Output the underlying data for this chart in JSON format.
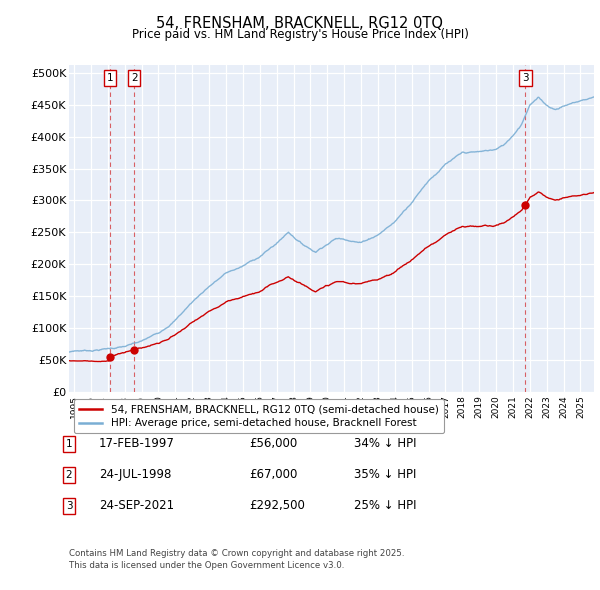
{
  "title": "54, FRENSHAM, BRACKNELL, RG12 0TQ",
  "subtitle": "Price paid vs. HM Land Registry's House Price Index (HPI)",
  "ylabel_ticks": [
    "£0",
    "£50K",
    "£100K",
    "£150K",
    "£200K",
    "£250K",
    "£300K",
    "£350K",
    "£400K",
    "£450K",
    "£500K"
  ],
  "ytick_values": [
    0,
    50000,
    100000,
    150000,
    200000,
    250000,
    300000,
    350000,
    400000,
    450000,
    500000
  ],
  "ylim": [
    0,
    512000
  ],
  "xlim_start": 1994.7,
  "xlim_end": 2025.8,
  "bg_color": "#e8eef8",
  "grid_color": "#ffffff",
  "sale1": {
    "date": 1997.125,
    "price": 56000,
    "label": "1"
  },
  "sale2": {
    "date": 1998.56,
    "price": 67000,
    "label": "2"
  },
  "sale3": {
    "date": 2021.73,
    "price": 292500,
    "label": "3"
  },
  "legend_red": "54, FRENSHAM, BRACKNELL, RG12 0TQ (semi-detached house)",
  "legend_blue": "HPI: Average price, semi-detached house, Bracknell Forest",
  "table": [
    {
      "num": "1",
      "date": "17-FEB-1997",
      "price": "£56,000",
      "pct": "34% ↓ HPI"
    },
    {
      "num": "2",
      "date": "24-JUL-1998",
      "price": "£67,000",
      "pct": "35% ↓ HPI"
    },
    {
      "num": "3",
      "date": "24-SEP-2021",
      "price": "£292,500",
      "pct": "25% ↓ HPI"
    }
  ],
  "footnote": "Contains HM Land Registry data © Crown copyright and database right 2025.\nThis data is licensed under the Open Government Licence v3.0.",
  "red_color": "#cc0000",
  "blue_color": "#7aaed4",
  "dashed_color": "#cc0000",
  "hpi_anchors": [
    [
      1994.7,
      63000
    ],
    [
      1995.0,
      65000
    ],
    [
      1996.0,
      66000
    ],
    [
      1997.0,
      69000
    ],
    [
      1998.0,
      72000
    ],
    [
      1999.0,
      78000
    ],
    [
      2000.0,
      90000
    ],
    [
      2001.0,
      112000
    ],
    [
      2002.0,
      140000
    ],
    [
      2003.0,
      165000
    ],
    [
      2004.0,
      185000
    ],
    [
      2005.0,
      195000
    ],
    [
      2006.0,
      210000
    ],
    [
      2007.0,
      230000
    ],
    [
      2007.7,
      248000
    ],
    [
      2008.5,
      230000
    ],
    [
      2009.3,
      218000
    ],
    [
      2009.8,
      228000
    ],
    [
      2010.5,
      240000
    ],
    [
      2011.5,
      238000
    ],
    [
      2012.0,
      235000
    ],
    [
      2013.0,
      248000
    ],
    [
      2014.0,
      268000
    ],
    [
      2015.0,
      300000
    ],
    [
      2016.0,
      335000
    ],
    [
      2017.0,
      360000
    ],
    [
      2018.0,
      375000
    ],
    [
      2019.0,
      375000
    ],
    [
      2020.0,
      378000
    ],
    [
      2020.5,
      385000
    ],
    [
      2021.0,
      400000
    ],
    [
      2021.5,
      418000
    ],
    [
      2022.0,
      450000
    ],
    [
      2022.5,
      460000
    ],
    [
      2023.0,
      448000
    ],
    [
      2023.5,
      442000
    ],
    [
      2024.0,
      448000
    ],
    [
      2024.5,
      452000
    ],
    [
      2025.3,
      458000
    ],
    [
      2025.8,
      462000
    ]
  ]
}
